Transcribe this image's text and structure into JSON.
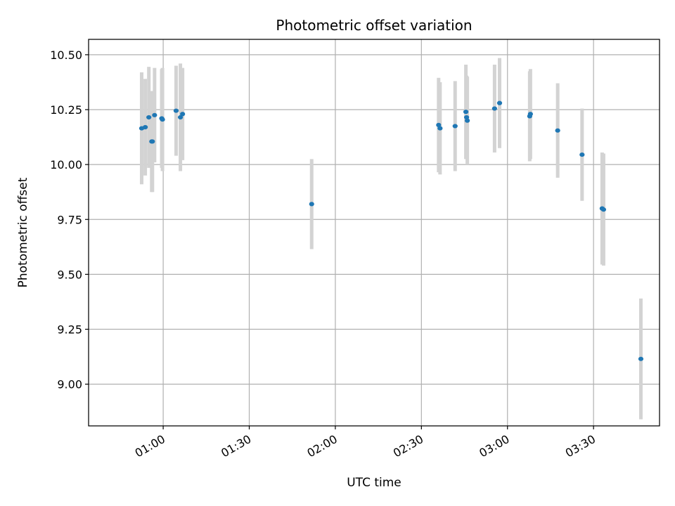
{
  "chart_data": {
    "type": "scatter",
    "title": "Photometric offset variation",
    "xlabel": "UTC time",
    "ylabel": "Photometric offset",
    "x_axis": "time (HH:MM UTC)",
    "xlim": [
      "00:34",
      "03:53"
    ],
    "ylim": [
      8.81,
      10.57
    ],
    "xticks": [
      "01:00",
      "01:30",
      "02:00",
      "02:30",
      "03:00",
      "03:30"
    ],
    "yticks": [
      "9.00",
      "9.25",
      "9.50",
      "9.75",
      "10.00",
      "10.25",
      "10.50"
    ],
    "grid": true,
    "legend": "none",
    "colors": {
      "marker": "#1f77b4",
      "errorbar": "#d3d3d3",
      "grid": "#b0b0b0"
    },
    "points": [
      {
        "x": "00:52:30",
        "y": 10.165,
        "err": 0.255
      },
      {
        "x": "00:53:45",
        "y": 10.17,
        "err": 0.22
      },
      {
        "x": "00:55:00",
        "y": 10.215,
        "err": 0.23
      },
      {
        "x": "00:56:00",
        "y": 10.105,
        "err": 0.23
      },
      {
        "x": "00:56:15",
        "y": 10.105,
        "err": 0.23
      },
      {
        "x": "00:57:00",
        "y": 10.225,
        "err": 0.215
      },
      {
        "x": "00:59:30",
        "y": 10.21,
        "err": 0.225
      },
      {
        "x": "00:59:45",
        "y": 10.205,
        "err": 0.235
      },
      {
        "x": "01:04:30",
        "y": 10.245,
        "err": 0.205
      },
      {
        "x": "01:06:00",
        "y": 10.215,
        "err": 0.245
      },
      {
        "x": "01:06:45",
        "y": 10.23,
        "err": 0.21
      },
      {
        "x": "01:51:45",
        "y": 9.82,
        "err": 0.205
      },
      {
        "x": "02:36:00",
        "y": 10.18,
        "err": 0.215
      },
      {
        "x": "02:36:30",
        "y": 10.165,
        "err": 0.21
      },
      {
        "x": "02:41:45",
        "y": 10.175,
        "err": 0.205
      },
      {
        "x": "02:45:30",
        "y": 10.24,
        "err": 0.215
      },
      {
        "x": "02:45:45",
        "y": 10.215,
        "err": 0.19
      },
      {
        "x": "02:46:00",
        "y": 10.2,
        "err": 0.2
      },
      {
        "x": "02:55:30",
        "y": 10.255,
        "err": 0.2
      },
      {
        "x": "02:57:15",
        "y": 10.28,
        "err": 0.205
      },
      {
        "x": "03:07:45",
        "y": 10.22,
        "err": 0.205
      },
      {
        "x": "03:08:00",
        "y": 10.23,
        "err": 0.205
      },
      {
        "x": "03:17:30",
        "y": 10.155,
        "err": 0.215
      },
      {
        "x": "03:26:00",
        "y": 10.045,
        "err": 0.21
      },
      {
        "x": "03:33:00",
        "y": 9.8,
        "err": 0.255
      },
      {
        "x": "03:33:30",
        "y": 9.795,
        "err": 0.255
      },
      {
        "x": "03:46:30",
        "y": 9.115,
        "err": 0.275
      }
    ]
  }
}
